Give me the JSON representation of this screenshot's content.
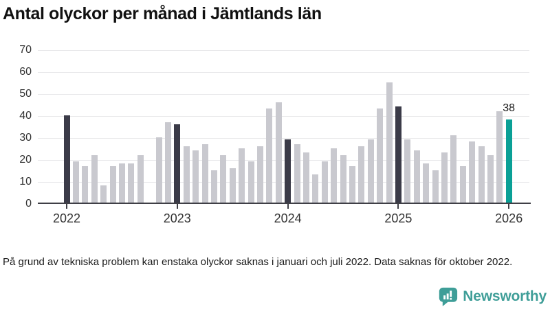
{
  "title": "Antal olyckor per månad i Jämtlands län",
  "note": "På grund av tekniska problem kan enstaka olyckor saknas i januari och juli 2022. Data saknas för oktober 2022.",
  "branding": {
    "name": "Newsworthy",
    "logo_icon": "bar-chart-speech-bubble-icon",
    "brand_color": "#3f9e98"
  },
  "chart_data": {
    "type": "bar",
    "title": "Antal olyckor per månad i Jämtlands län",
    "xlabel": "",
    "ylabel": "",
    "x_unit": "månad",
    "start_month": "2022-01",
    "end_month": "2026-01",
    "x_tick_labels": [
      "2022",
      "2023",
      "2024",
      "2025",
      "2026"
    ],
    "y_ticks": [
      0,
      10,
      20,
      30,
      40,
      50,
      60,
      70
    ],
    "ylim": [
      0,
      72.8
    ],
    "grid": "horizontal",
    "legend": "none",
    "missing_months": [
      "2022-10"
    ],
    "series": [
      {
        "name": "Antal olyckor",
        "values_by_year": {
          "2022": [
            40,
            19,
            17,
            22,
            8,
            17,
            18,
            18,
            22,
            null,
            30,
            37
          ],
          "2023": [
            36,
            26,
            24,
            27,
            15,
            22,
            16,
            25,
            19,
            26,
            43,
            46
          ],
          "2024": [
            29,
            27,
            23,
            13,
            19,
            25,
            22,
            17,
            26,
            29,
            43,
            55
          ],
          "2025": [
            44,
            29,
            24,
            18,
            15,
            23,
            31,
            17,
            28,
            26,
            22,
            42
          ],
          "2026": [
            38
          ]
        }
      }
    ],
    "annotation": {
      "label": "38",
      "target_month": "2026-01"
    },
    "colors": {
      "bar_default": "#c9c9cf",
      "bar_january": "#3b3b48",
      "bar_latest": "#0aa096",
      "gridline": "#e8e8ea",
      "axis_line": "#3f3f46"
    }
  }
}
